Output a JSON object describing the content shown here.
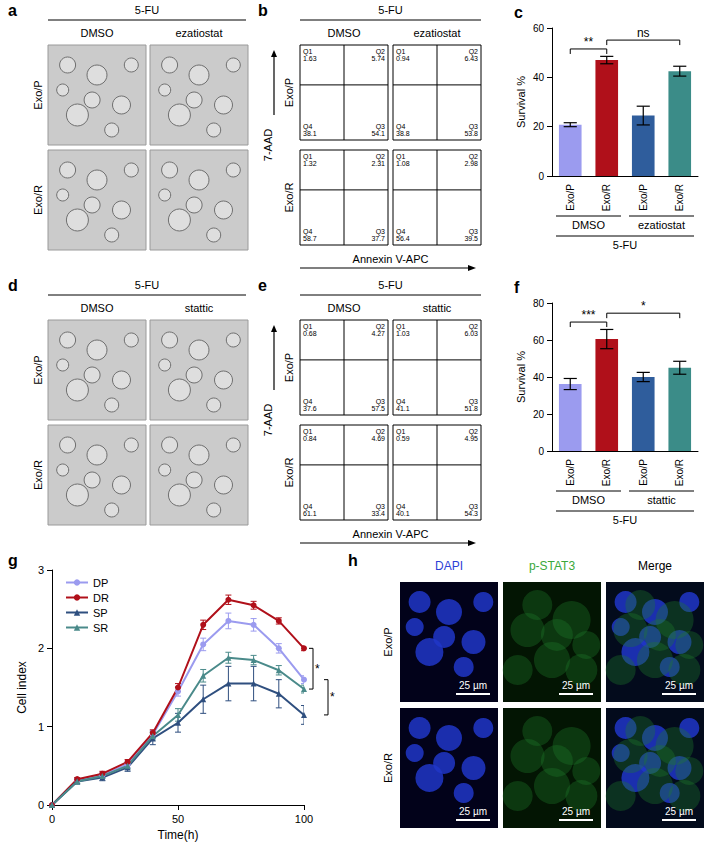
{
  "panels": {
    "a": {
      "letter": "a",
      "header": "5-FU",
      "columns": [
        "DMSO",
        "ezatiostat"
      ],
      "rows": [
        "Exo/P",
        "Exo/R"
      ]
    },
    "b": {
      "letter": "b",
      "header": "5-FU",
      "columns": [
        "DMSO",
        "ezatiostat"
      ],
      "rows": [
        "Exo/P",
        "Exo/R"
      ],
      "x_label": "Annexin V-APC",
      "y_label": "7-AAD",
      "quadrants": [
        [
          [
            {
              "label": "Q1",
              "value": 1.63
            },
            {
              "label": "Q2",
              "value": 5.74
            },
            {
              "label": "Q3",
              "value": 54.1
            },
            {
              "label": "Q4",
              "value": 38.1
            }
          ],
          [
            {
              "label": "Q1",
              "value": 0.94
            },
            {
              "label": "Q2",
              "value": 6.43
            },
            {
              "label": "Q3",
              "value": 53.8
            },
            {
              "label": "Q4",
              "value": 38.8
            }
          ]
        ],
        [
          [
            {
              "label": "Q1",
              "value": 1.32
            },
            {
              "label": "Q2",
              "value": 2.31
            },
            {
              "label": "Q3",
              "value": 37.7
            },
            {
              "label": "Q4",
              "value": 58.7
            }
          ],
          [
            {
              "label": "Q1",
              "value": 1.08
            },
            {
              "label": "Q2",
              "value": 2.98
            },
            {
              "label": "Q3",
              "value": 39.5
            },
            {
              "label": "Q4",
              "value": 56.4
            }
          ]
        ]
      ]
    },
    "d": {
      "letter": "d",
      "header": "5-FU",
      "columns": [
        "DMSO",
        "stattic"
      ],
      "rows": [
        "Exo/P",
        "Exo/R"
      ]
    },
    "e": {
      "letter": "e",
      "header": "5-FU",
      "columns": [
        "DMSO",
        "stattic"
      ],
      "rows": [
        "Exo/P",
        "Exo/R"
      ],
      "x_label": "Annexin V-APC",
      "y_label": "7-AAD",
      "quadrants": [
        [
          [
            {
              "label": "Q1",
              "value": 0.68
            },
            {
              "label": "Q2",
              "value": 4.27
            },
            {
              "label": "Q3",
              "value": 57.5
            },
            {
              "label": "Q4",
              "value": 37.6
            }
          ],
          [
            {
              "label": "Q1",
              "value": 1.03
            },
            {
              "label": "Q2",
              "value": 6.03
            },
            {
              "label": "Q3",
              "value": 51.8
            },
            {
              "label": "Q4",
              "value": 41.1
            }
          ]
        ],
        [
          [
            {
              "label": "Q1",
              "value": 0.84
            },
            {
              "label": "Q2",
              "value": 4.69
            },
            {
              "label": "Q3",
              "value": 33.4
            },
            {
              "label": "Q4",
              "value": 61.1
            }
          ],
          [
            {
              "label": "Q1",
              "value": 0.59
            },
            {
              "label": "Q2",
              "value": 4.95
            },
            {
              "label": "Q3",
              "value": 54.3
            },
            {
              "label": "Q4",
              "value": 40.1
            }
          ]
        ]
      ]
    },
    "h": {
      "letter": "h",
      "columns": [
        "DAPI",
        "p-STAT3",
        "Merge"
      ],
      "rows": [
        "Exo/P",
        "Exo/R"
      ],
      "scale_bar": "25 µm"
    }
  },
  "chart_data": [
    {
      "type": "bar",
      "letter": "c",
      "categories": [
        "Exo/P",
        "Exo/R",
        "Exo/P",
        "Exo/R"
      ],
      "values": [
        20.8,
        47.0,
        24.5,
        42.5
      ],
      "errors": [
        0.8,
        1.5,
        3.8,
        2.0
      ],
      "colors": [
        "#9b9bef",
        "#b0101a",
        "#2f5d9c",
        "#3b8c88"
      ],
      "y_label": "Survival %",
      "ylim": [
        0,
        60
      ],
      "yticks": [
        0,
        20,
        40,
        60
      ],
      "grid": false,
      "groups": [
        {
          "label": "DMSO",
          "categories": [
            0,
            1
          ]
        },
        {
          "label": "ezatiostat",
          "categories": [
            2,
            3
          ]
        }
      ],
      "treatment": "5-FU",
      "significance": [
        {
          "between": [
            0,
            1
          ],
          "label": "**"
        },
        {
          "between": [
            1,
            3
          ],
          "label": "ns"
        }
      ]
    },
    {
      "type": "bar",
      "letter": "f",
      "categories": [
        "Exo/P",
        "Exo/R",
        "Exo/P",
        "Exo/R"
      ],
      "values": [
        36.2,
        60.5,
        40.0,
        45.0
      ],
      "errors": [
        3.0,
        5.2,
        2.5,
        3.5
      ],
      "colors": [
        "#9b9bef",
        "#b0101a",
        "#2f5d9c",
        "#3b8c88"
      ],
      "y_label": "Survival %",
      "ylim": [
        0,
        80
      ],
      "yticks": [
        0,
        20,
        40,
        60,
        80
      ],
      "grid": false,
      "groups": [
        {
          "label": "DMSO",
          "categories": [
            0,
            1
          ]
        },
        {
          "label": "stattic",
          "categories": [
            2,
            3
          ]
        }
      ],
      "treatment": "5-FU",
      "significance": [
        {
          "between": [
            0,
            1
          ],
          "label": "***"
        },
        {
          "between": [
            1,
            3
          ],
          "label": "*"
        }
      ]
    },
    {
      "type": "line",
      "letter": "g",
      "x": [
        0,
        10,
        20,
        30,
        40,
        50,
        60,
        70,
        80,
        90,
        100
      ],
      "xlim": [
        0,
        100
      ],
      "xticks": [
        0,
        50,
        100
      ],
      "ylim": [
        0,
        3
      ],
      "yticks": [
        0,
        1,
        2,
        3
      ],
      "x_label": "Time(h)",
      "y_label": "Cell index",
      "legend": "upper left",
      "grid": false,
      "series": [
        {
          "name": "DP",
          "color": "#9b9bef",
          "marker": "circle",
          "values": [
            0,
            0.32,
            0.38,
            0.52,
            0.9,
            1.45,
            2.05,
            2.35,
            2.3,
            2.0,
            1.6
          ],
          "errors": [
            0,
            0.02,
            0.03,
            0.04,
            0.05,
            0.06,
            0.08,
            0.1,
            0.08,
            0.06,
            0.05
          ]
        },
        {
          "name": "DR",
          "color": "#b0101a",
          "marker": "circle",
          "values": [
            0,
            0.33,
            0.4,
            0.55,
            0.92,
            1.5,
            2.3,
            2.62,
            2.55,
            2.35,
            2.0
          ],
          "errors": [
            0,
            0.02,
            0.03,
            0.03,
            0.04,
            0.05,
            0.06,
            0.06,
            0.05,
            0.04,
            0.03
          ]
        },
        {
          "name": "SP",
          "color": "#2f4f7f",
          "marker": "triangle",
          "values": [
            0,
            0.3,
            0.35,
            0.48,
            0.85,
            1.05,
            1.35,
            1.55,
            1.55,
            1.42,
            1.15
          ],
          "errors": [
            0,
            0.03,
            0.04,
            0.05,
            0.08,
            0.12,
            0.18,
            0.22,
            0.22,
            0.18,
            0.12
          ]
        },
        {
          "name": "SR",
          "color": "#4a8a8a",
          "marker": "triangle",
          "values": [
            0,
            0.3,
            0.37,
            0.5,
            0.88,
            1.15,
            1.65,
            1.88,
            1.85,
            1.72,
            1.48
          ],
          "errors": [
            0,
            0.02,
            0.03,
            0.04,
            0.05,
            0.08,
            0.08,
            0.07,
            0.06,
            0.06,
            0.05
          ]
        }
      ],
      "significance": [
        {
          "between": [
            "DR",
            "SR"
          ],
          "label": "*"
        },
        {
          "between": [
            "DP",
            "SP"
          ],
          "label": "*"
        }
      ]
    }
  ]
}
